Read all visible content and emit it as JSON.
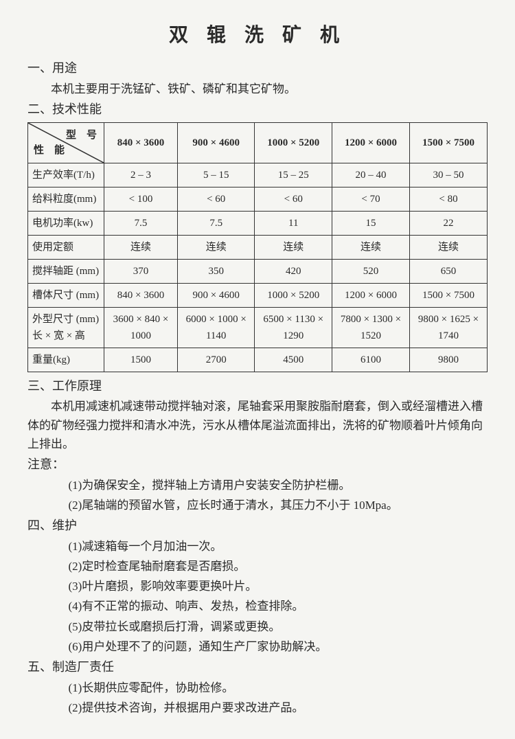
{
  "title": "双 辊 洗 矿 机",
  "s1_head": "一、用途",
  "s1_body": "本机主要用于洗锰矿、铁矿、磷矿和其它矿物。",
  "s2_head": "二、技术性能",
  "table": {
    "diag_top": "型　号",
    "diag_bottom": "性　能",
    "models": [
      "840 × 3600",
      "900 × 4600",
      "1000 × 5200",
      "1200 × 6000",
      "1500 × 7500"
    ],
    "rows": [
      {
        "label": "生产效率(T/h)",
        "cells": [
          "2 – 3",
          "5 – 15",
          "15 – 25",
          "20 – 40",
          "30 – 50"
        ]
      },
      {
        "label": "给料粒度(mm)",
        "cells": [
          "< 100",
          "< 60",
          "< 60",
          "< 70",
          "< 80"
        ]
      },
      {
        "label": "电机功率(kw)",
        "cells": [
          "7.5",
          "7.5",
          "11",
          "15",
          "22"
        ]
      },
      {
        "label": "使用定额",
        "cells": [
          "连续",
          "连续",
          "连续",
          "连续",
          "连续"
        ]
      },
      {
        "label": "搅拌轴距 (mm)",
        "cells": [
          "370",
          "350",
          "420",
          "520",
          "650"
        ]
      },
      {
        "label": "槽体尺寸 (mm)",
        "cells": [
          "840 × 3600",
          "900 × 4600",
          "1000 × 5200",
          "1200 × 6000",
          "1500 × 7500"
        ]
      },
      {
        "label": "外型尺寸 (mm)\n长 × 宽 × 高",
        "cells": [
          "3600 × 840 × 1000",
          "6000 × 1000 × 1140",
          "6500 × 1130 × 1290",
          "7800 × 1300 × 1520",
          "9800 × 1625 × 1740"
        ]
      },
      {
        "label": "重量(kg)",
        "cells": [
          "1500",
          "2700",
          "4500",
          "6100",
          "9800"
        ]
      }
    ]
  },
  "s3_head": "三、工作原理",
  "s3_body": "本机用减速机减速带动搅拌轴对滚，尾轴套采用聚胺脂耐磨套，倒入或经溜槽进入槽体的矿物经强力搅拌和清水冲洗，污水从槽体尾溢流面排出，洗将的矿物顺着叶片倾角向上排出。",
  "note_head": "注意：",
  "note1": "(1)为确保安全，搅拌轴上方请用户安装安全防护栏栅。",
  "note2": "(2)尾轴端的预留水管，应长时通于清水，其压力不小于 10Mpa。",
  "s4_head": "四、维护",
  "m1": "(1)减速箱每一个月加油一次。",
  "m2": "(2)定时检查尾轴耐磨套是否磨损。",
  "m3": "(3)叶片磨损，影响效率要更换叶片。",
  "m4": "(4)有不正常的振动、响声、发热，检查排除。",
  "m5": "(5)皮带拉长或磨损后打滑，调紧或更换。",
  "m6": "(6)用户处理不了的问题，通知生产厂家协助解决。",
  "s5_head": "五、制造厂责任",
  "r1": "(1)长期供应零配件，协助检修。",
  "r2": "(2)提供技术咨询，并根据用户要求改进产品。"
}
